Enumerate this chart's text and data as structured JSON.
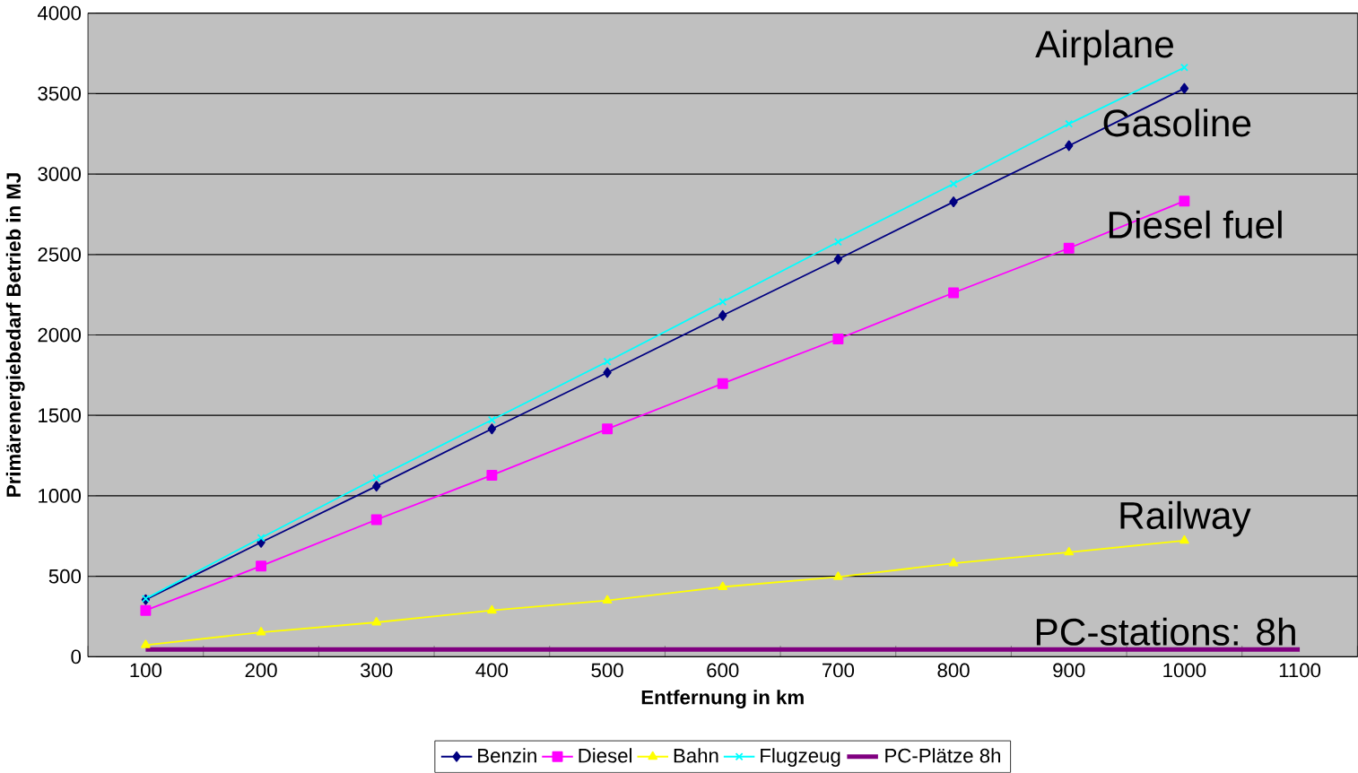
{
  "chart_data": {
    "type": "line",
    "xlabel": "Entfernung in km",
    "ylabel": "Primärenergiebedarf Betrieb in MJ",
    "categories": [
      "100",
      "200",
      "300",
      "400",
      "500",
      "600",
      "700",
      "800",
      "900",
      "1000",
      "1100"
    ],
    "series": [
      {
        "name": "Benzin",
        "color": "#000080",
        "marker": "diamond",
        "values": [
          355,
          711,
          1060,
          1416,
          1766,
          2121,
          2471,
          2827,
          3176,
          3532,
          null
        ]
      },
      {
        "name": "Diesel",
        "color": "#ff00ff",
        "marker": "square",
        "values": [
          288,
          564,
          852,
          1128,
          1416,
          1698,
          1975,
          2262,
          2539,
          2832,
          null
        ]
      },
      {
        "name": "Bahn",
        "color": "#ffff00",
        "marker": "triangle",
        "values": [
          73,
          152,
          214,
          288,
          350,
          434,
          496,
          581,
          649,
          722,
          null
        ]
      },
      {
        "name": "Flugzeug",
        "color": "#00ffff",
        "marker": "cross",
        "values": [
          361,
          739,
          1111,
          1472,
          1834,
          2206,
          2578,
          2939,
          3312,
          3662,
          null
        ]
      },
      {
        "name": "PC-Plätze 8h",
        "color": "#800080",
        "marker": "none",
        "values": [
          45,
          45,
          45,
          45,
          45,
          45,
          45,
          45,
          45,
          45,
          45
        ]
      }
    ],
    "ylim": [
      0,
      4000
    ],
    "yticks": [
      0,
      500,
      1000,
      1500,
      2000,
      2500,
      3000,
      3500,
      4000
    ],
    "grid": "y",
    "legend": "bottom",
    "annotations": [
      {
        "text": "Airplane",
        "x": "1000",
        "y": 3662
      },
      {
        "text": "Gasoline",
        "x": "1000",
        "y": 3532
      },
      {
        "text": "Diesel fuel",
        "x": "1000",
        "y": 2832
      },
      {
        "text": "Railway",
        "x": "1000",
        "y": 722
      },
      {
        "text": "PC-stations: 8h",
        "x": "1100",
        "y": 45
      }
    ]
  }
}
